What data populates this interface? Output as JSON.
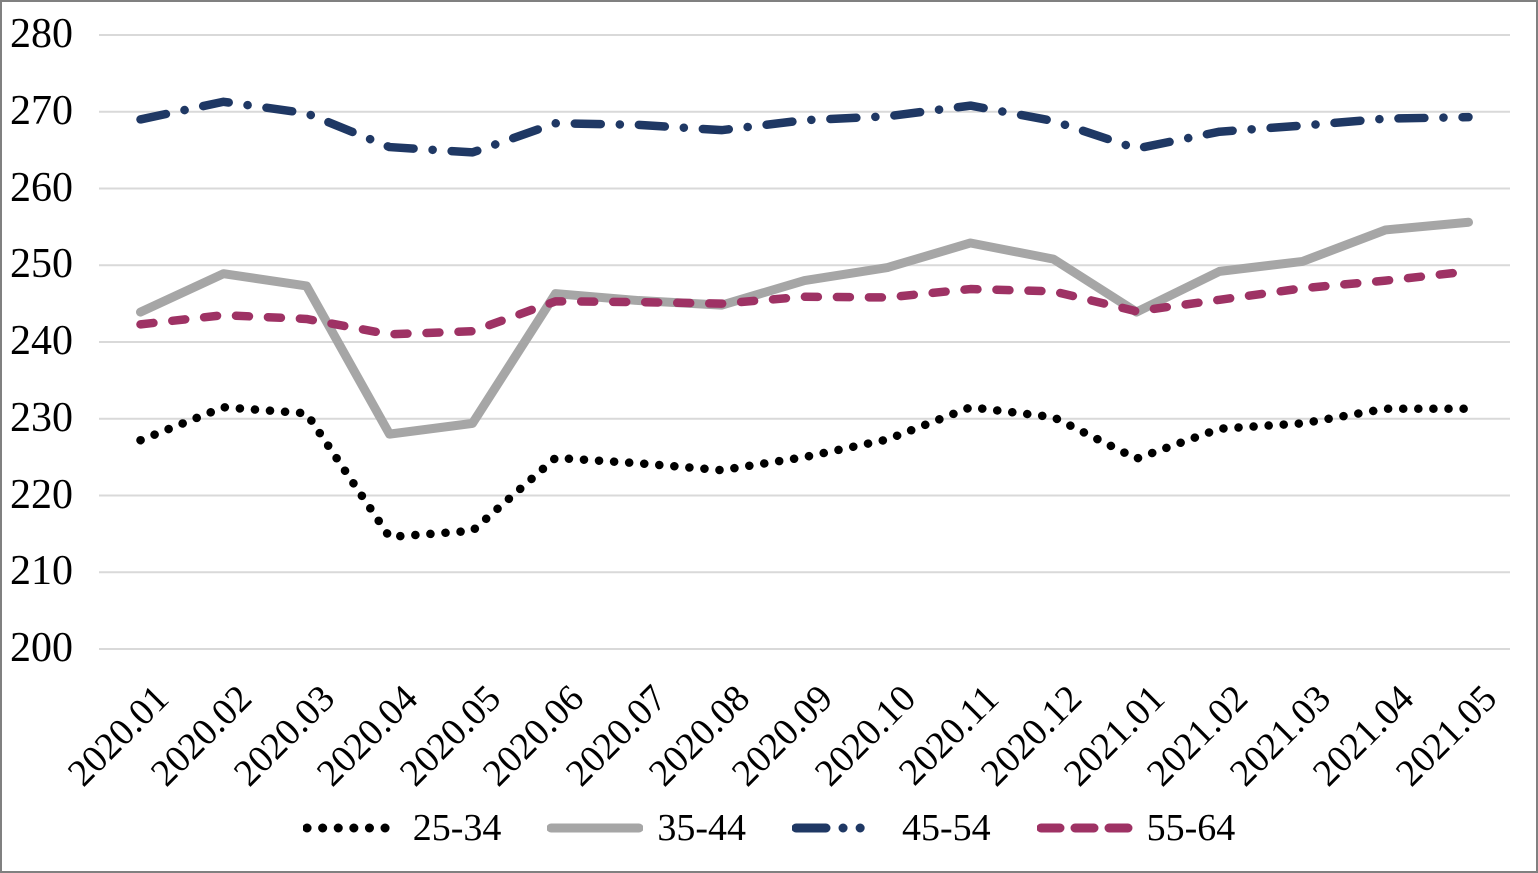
{
  "chart_data": {
    "type": "line",
    "title": "",
    "xlabel": "",
    "ylabel": "",
    "ylim": [
      200,
      280
    ],
    "ytick_step": 10,
    "ytick_labels": [
      "280",
      "270",
      "260",
      "250",
      "240",
      "230",
      "220",
      "210",
      "200"
    ],
    "grid": "horizontal",
    "legend_position": "bottom",
    "categories": [
      "2020.01",
      "2020.02",
      "2020.03",
      "2020.04",
      "2020.05",
      "2020.06",
      "2020.07",
      "2020.08",
      "2020.09",
      "2020.10",
      "2020.11",
      "2020.12",
      "2021.01",
      "2021.02",
      "2021.03",
      "2021.04",
      "2021.05"
    ],
    "series": [
      {
        "name": "25-34",
        "color": "#000000",
        "style": "dotted",
        "values": [
          227.2,
          231.5,
          230.7,
          214.6,
          215.4,
          224.9,
          224.2,
          223.3,
          225.0,
          227.3,
          231.5,
          230.2,
          224.8,
          228.7,
          229.4,
          231.3,
          231.3
        ]
      },
      {
        "name": "35-44",
        "color": "#A6A6A6",
        "style": "solid",
        "values": [
          243.9,
          248.9,
          247.3,
          228.0,
          229.4,
          246.3,
          245.4,
          244.8,
          248.0,
          249.7,
          252.9,
          250.8,
          243.9,
          249.2,
          250.5,
          254.6,
          255.6
        ]
      },
      {
        "name": "45-54",
        "color": "#1F3864",
        "style": "dash-dot",
        "values": [
          269.0,
          271.3,
          269.8,
          265.4,
          264.7,
          268.5,
          268.3,
          267.6,
          268.9,
          269.4,
          270.8,
          268.8,
          265.2,
          267.4,
          268.2,
          269.1,
          269.3
        ]
      },
      {
        "name": "55-64",
        "color": "#9E3264",
        "style": "dashed",
        "values": [
          242.3,
          243.5,
          243.0,
          241.0,
          241.4,
          245.3,
          245.2,
          245.0,
          245.9,
          245.8,
          246.9,
          246.6,
          244.0,
          245.5,
          247.0,
          248.0,
          249.2
        ]
      }
    ]
  },
  "colors": {
    "background": "#FFFFFF",
    "gridline": "#D9D9D9",
    "text": "#000000",
    "border": "#808080"
  }
}
